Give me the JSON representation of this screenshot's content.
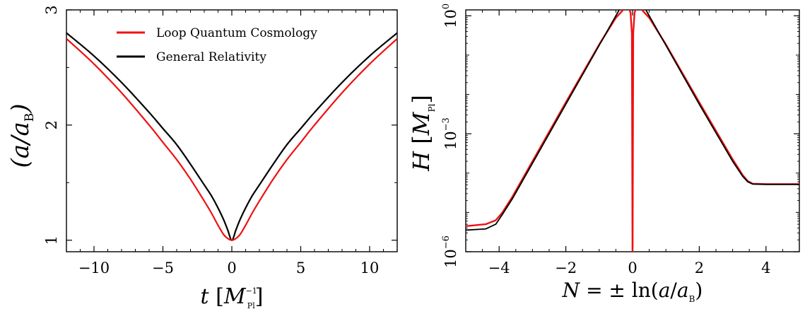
{
  "chart_data": [
    {
      "type": "line",
      "xlabel": "t [M_Pl^-1]",
      "ylabel": "(a/a_B)",
      "xlim": [
        -12,
        12
      ],
      "ylim": [
        0.9,
        3.0
      ],
      "xticks": [
        -10,
        -5,
        0,
        5,
        10
      ],
      "xtick_labels": [
        "−10",
        "−5",
        "0",
        "5",
        "10"
      ],
      "yticks": [
        1,
        2,
        3
      ],
      "ytick_labels": [
        "1",
        "2",
        "3"
      ],
      "legend_position": "top-center",
      "series": [
        {
          "name": "Loop Quantum Cosmology",
          "color": "#ee1111",
          "x": [
            -12,
            -10,
            -8,
            -6,
            -5,
            -4,
            -3,
            -2,
            -1.5,
            -1,
            -0.6,
            -0.3,
            0,
            0.3,
            0.6,
            1,
            1.5,
            2,
            3,
            4,
            5,
            6,
            8,
            10,
            12
          ],
          "y": [
            2.75,
            2.53,
            2.28,
            2.0,
            1.85,
            1.7,
            1.53,
            1.34,
            1.24,
            1.13,
            1.05,
            1.015,
            1.0,
            1.015,
            1.05,
            1.13,
            1.24,
            1.34,
            1.53,
            1.7,
            1.85,
            2.0,
            2.28,
            2.53,
            2.75
          ]
        },
        {
          "name": "General Relativity",
          "color": "#000000",
          "x": [
            -12,
            -10,
            -8,
            -6,
            -5,
            -4,
            -3,
            -2,
            -1.5,
            -1,
            -0.6,
            -0.3,
            0,
            0.3,
            0.6,
            1,
            1.5,
            2,
            3,
            4,
            5,
            6,
            8,
            10,
            12
          ],
          "y": [
            2.8,
            2.6,
            2.37,
            2.11,
            1.97,
            1.83,
            1.66,
            1.48,
            1.39,
            1.28,
            1.18,
            1.09,
            1.0,
            1.09,
            1.18,
            1.28,
            1.39,
            1.48,
            1.66,
            1.83,
            1.97,
            2.11,
            2.37,
            2.6,
            2.8
          ]
        }
      ]
    },
    {
      "type": "line",
      "xlabel": "N = ± ln(a/a_B)",
      "ylabel": "H [M_Pl]",
      "xlim": [
        -5,
        5
      ],
      "ylim_log10": [
        -6,
        0.15
      ],
      "yscale": "log",
      "xticks": [
        -4,
        -2,
        0,
        2,
        4
      ],
      "xtick_labels": [
        "−4",
        "−2",
        "0",
        "2",
        "4"
      ],
      "yticks_log10": [
        -6,
        -3,
        0
      ],
      "ytick_labels": [
        "10",
        "10",
        "10"
      ],
      "ytick_exponents": [
        "−6",
        "−3",
        "0"
      ],
      "series": [
        {
          "name": "Loop Quantum Cosmology",
          "color": "#ee1111",
          "x": [
            -5,
            -4.4,
            -4.1,
            -3.9,
            -3.6,
            -3,
            -2,
            -1,
            -0.5,
            -0.15,
            -0.06,
            -0.02,
            0,
            0.02,
            0.06,
            0.15,
            0.5,
            1,
            2,
            3,
            3.3,
            3.45,
            3.6,
            4,
            5
          ],
          "log10_y": [
            -5.35,
            -5.3,
            -5.2,
            -5.0,
            -4.6,
            -3.7,
            -2.2,
            -0.73,
            -0.05,
            0.27,
            0.08,
            -0.45,
            -6.5,
            -0.45,
            0.08,
            0.27,
            -0.05,
            -0.73,
            -2.2,
            -3.65,
            -4.05,
            -4.2,
            -4.27,
            -4.28,
            -4.28
          ]
        },
        {
          "name": "General Relativity",
          "color": "#000000",
          "x": [
            -5,
            -4.4,
            -4.1,
            -3.9,
            -3.6,
            -3,
            -2,
            -1,
            0,
            1,
            2,
            3,
            3.3,
            3.45,
            3.6,
            4,
            5
          ],
          "log10_y": [
            -5.45,
            -5.42,
            -5.3,
            -5.05,
            -4.65,
            -3.75,
            -2.25,
            -0.75,
            0.75,
            -0.75,
            -2.25,
            -3.7,
            -4.08,
            -4.22,
            -4.28,
            -4.29,
            -4.29
          ]
        }
      ]
    }
  ]
}
